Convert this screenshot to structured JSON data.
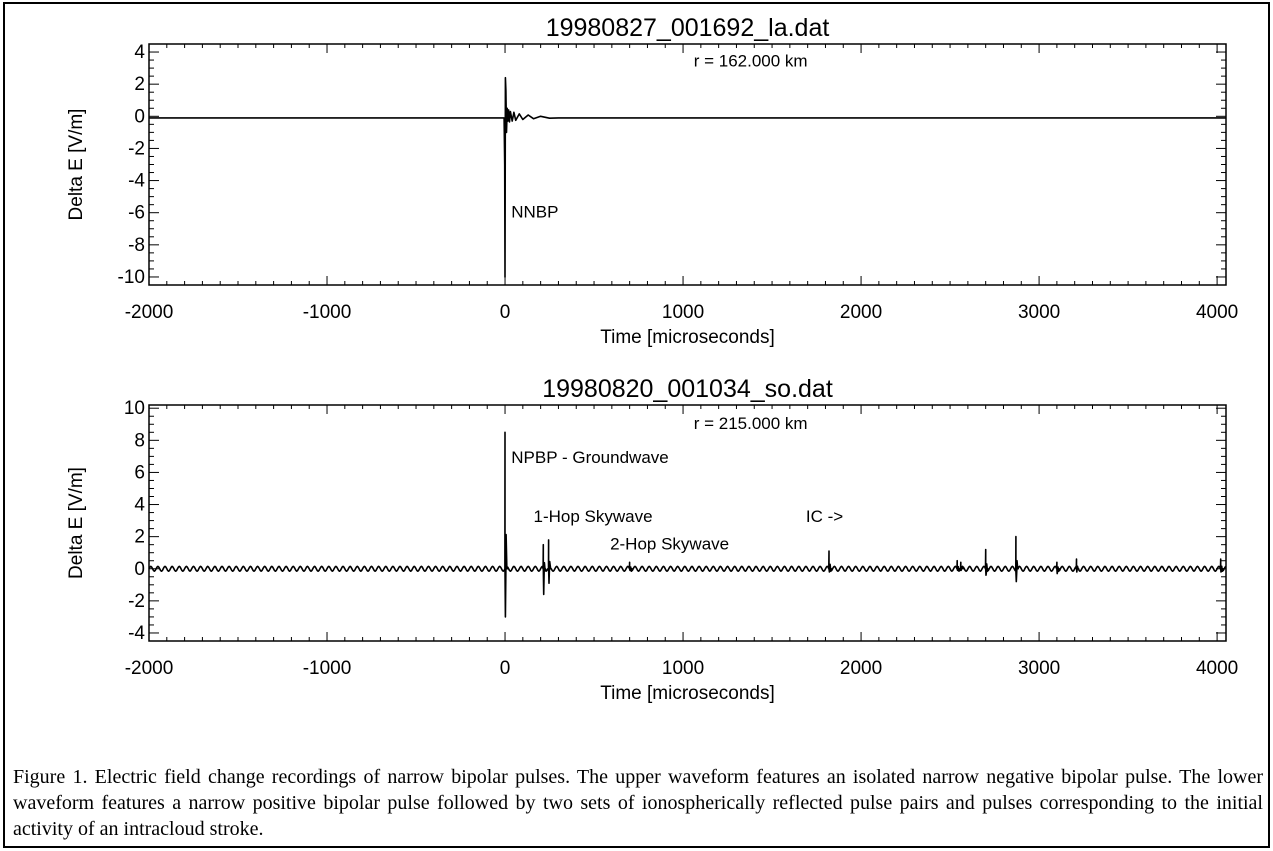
{
  "chart_data": [
    {
      "type": "line",
      "title": "19980827_001692_la.dat",
      "xlabel": "Time [microseconds]",
      "ylabel": "Delta E [V/m]",
      "xlim": [
        -2000,
        4050
      ],
      "ylim": [
        -10.5,
        4.5
      ],
      "xticks": [
        -2000,
        -1000,
        0,
        1000,
        2000,
        3000,
        4000
      ],
      "yticks": [
        4,
        2,
        0,
        -2,
        -4,
        -6,
        -8,
        -10
      ],
      "baseline": -0.1,
      "x": [
        -2000,
        -5,
        -2,
        0,
        2,
        5,
        8,
        12,
        16,
        20,
        25,
        30,
        40,
        50,
        60,
        80,
        100,
        130,
        160,
        200,
        250,
        300,
        4050
      ],
      "y": [
        -0.1,
        -0.1,
        -3.0,
        -10.0,
        2.4,
        1.6,
        -1.0,
        0.5,
        -0.3,
        0.4,
        -0.35,
        0.3,
        -0.3,
        0.25,
        -0.25,
        0.15,
        -0.2,
        0.08,
        -0.15,
        0.0,
        -0.12,
        -0.1,
        -0.1
      ],
      "annotations": [
        {
          "text": "r = 162.000 km",
          "x": 1060,
          "y": 3.1
        },
        {
          "text": "NNBP",
          "x": 35,
          "y": -6.3
        }
      ]
    },
    {
      "type": "line",
      "title": "19980820_001034_so.dat",
      "xlabel": "Time [microseconds]",
      "ylabel": "Delta E [V/m]",
      "xlim": [
        -2000,
        4050
      ],
      "ylim": [
        -4.5,
        10.2
      ],
      "xticks": [
        -2000,
        -1000,
        0,
        1000,
        2000,
        3000,
        4000
      ],
      "yticks": [
        10,
        8,
        6,
        4,
        2,
        0,
        -2,
        -4
      ],
      "baseline": 0.0,
      "ripple_amplitude": 0.15,
      "ripple_period": 40,
      "spikes": [
        {
          "x": 0,
          "hi": 8.5,
          "lo": -3.0
        },
        {
          "x": 215,
          "hi": 1.5,
          "lo": -1.6
        },
        {
          "x": 245,
          "hi": 1.8,
          "lo": -0.9
        },
        {
          "x": 700,
          "hi": 0.4,
          "lo": -0.1
        },
        {
          "x": 1820,
          "hi": 1.1,
          "lo": -0.2
        },
        {
          "x": 2540,
          "hi": 0.5,
          "lo": -0.1
        },
        {
          "x": 2560,
          "hi": 0.4,
          "lo": -0.1
        },
        {
          "x": 2700,
          "hi": 1.2,
          "lo": -0.4
        },
        {
          "x": 2870,
          "hi": 2.0,
          "lo": -0.8
        },
        {
          "x": 3100,
          "hi": 0.4,
          "lo": -0.3
        },
        {
          "x": 3210,
          "hi": 0.6,
          "lo": -0.2
        },
        {
          "x": 4020,
          "hi": 0.6,
          "lo": -0.2
        }
      ],
      "annotations": [
        {
          "text": "r = 215.000 km",
          "x": 1060,
          "y": 8.7
        },
        {
          "text": "NPBP - Groundwave",
          "x": 35,
          "y": 6.6
        },
        {
          "text": "1-Hop Skywave",
          "x": 160,
          "y": 2.9
        },
        {
          "text": "IC ->",
          "x": 1690,
          "y": 2.9
        },
        {
          "text": "2-Hop Skywave",
          "x": 590,
          "y": 1.2
        }
      ]
    }
  ],
  "caption": "Figure 1.  Electric field change recordings of narrow bipolar pulses.  The upper waveform features an isolated narrow negative bipolar pulse.  The lower waveform features a narrow positive bipolar pulse followed by two sets of ionospherically reflected pulse pairs and pulses corresponding to the initial activity of an intracloud stroke."
}
